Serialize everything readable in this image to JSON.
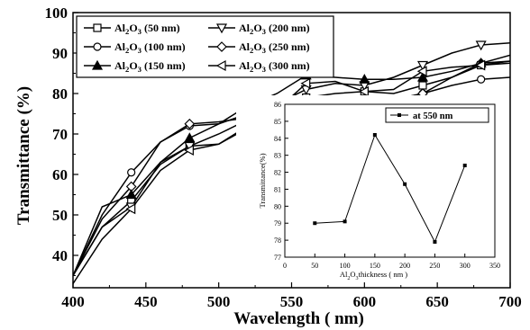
{
  "chart_data": [
    {
      "type": "line",
      "xlabel": "Wavelength ( nm)",
      "ylabel": "Transmittance (%)",
      "xlim": [
        400,
        700
      ],
      "ylim": [
        32,
        100
      ],
      "xticks": [
        "400",
        "450",
        "500",
        "550",
        "600",
        "650",
        "700"
      ],
      "yticks": [
        "40",
        "50",
        "60",
        "70",
        "80",
        "90",
        "100"
      ],
      "legend_position": "top-left",
      "series": [
        {
          "name": "Al2O3 (50 nm)",
          "marker": "square",
          "x": [
            400,
            420,
            440,
            460,
            480,
            500,
            520,
            540,
            560,
            580,
            600,
            620,
            640,
            660,
            680,
            700
          ],
          "y": [
            35,
            47,
            53.5,
            62.5,
            67,
            67.5,
            71.5,
            75,
            79,
            80,
            80.5,
            80,
            82,
            84,
            87,
            88
          ]
        },
        {
          "name": "Al2O3 (200 nm)",
          "marker": "triangle-down",
          "x": [
            400,
            420,
            440,
            460,
            480,
            500,
            520,
            540,
            560,
            580,
            600,
            620,
            640,
            660,
            680,
            700
          ],
          "y": [
            35,
            47,
            52,
            63,
            67,
            70,
            73.5,
            77.5,
            81,
            82.5,
            82,
            84,
            87,
            90,
            92,
            92.5
          ]
        },
        {
          "name": "Al2O3 (100 nm)",
          "marker": "circle",
          "x": [
            400,
            420,
            440,
            460,
            480,
            500,
            520,
            540,
            560,
            580,
            600,
            620,
            640,
            660,
            680,
            700
          ],
          "y": [
            35,
            50,
            60.5,
            68,
            72,
            72.5,
            75,
            76,
            78,
            77.5,
            77.5,
            78.5,
            80,
            82,
            83.5,
            84
          ]
        },
        {
          "name": "Al2O3 (250 nm)",
          "marker": "diamond",
          "x": [
            400,
            420,
            440,
            460,
            480,
            500,
            520,
            540,
            560,
            580,
            600,
            620,
            640,
            660,
            680,
            700
          ],
          "y": [
            35,
            49,
            57,
            68,
            72.5,
            73,
            74,
            76,
            78,
            78,
            78.5,
            78.5,
            80,
            84,
            87.5,
            88
          ]
        },
        {
          "name": "Al2O3 (150 nm)",
          "marker": "triangle-up",
          "x": [
            400,
            420,
            440,
            460,
            480,
            500,
            520,
            540,
            560,
            580,
            600,
            620,
            640,
            660,
            680,
            700
          ],
          "y": [
            35,
            52,
            55,
            63,
            69,
            72.5,
            77,
            80,
            84.5,
            84,
            83.5,
            83.5,
            84,
            85.5,
            87.5,
            89.5
          ]
        },
        {
          "name": "Al2O3 (300 nm)",
          "marker": "triangle-left",
          "x": [
            400,
            420,
            440,
            460,
            480,
            500,
            520,
            540,
            560,
            580,
            600,
            620,
            640,
            660,
            680,
            700
          ],
          "y": [
            33,
            44,
            51.5,
            61,
            66,
            67.5,
            72,
            76,
            82.5,
            83,
            80.5,
            81,
            85.5,
            86.5,
            87,
            87.5
          ]
        }
      ]
    },
    {
      "type": "line",
      "xlabel": "Al2O3 thickness ( nm )",
      "ylabel": "Transmittance(%)",
      "xlim": [
        0,
        350
      ],
      "ylim": [
        77,
        86
      ],
      "xticks": [
        "0",
        "50",
        "100",
        "150",
        "200",
        "250",
        "300",
        "350"
      ],
      "yticks": [
        "77",
        "78",
        "79",
        "80",
        "81",
        "82",
        "83",
        "84",
        "85",
        "86"
      ],
      "legend_position": "top-right",
      "series": [
        {
          "name": "at 550 nm",
          "marker": "filled-square",
          "x": [
            50,
            100,
            150,
            200,
            250,
            300
          ],
          "y": [
            79.0,
            79.1,
            84.2,
            81.3,
            77.9,
            82.4
          ]
        }
      ]
    }
  ],
  "legend_labels": [
    {
      "pre": "Al",
      "sub": "2",
      "post": "O",
      "sub2": "3",
      "tail": " (50 nm)"
    },
    {
      "pre": "Al",
      "sub": "2",
      "post": "O",
      "sub2": "3",
      "tail": " (200 nm)"
    },
    {
      "pre": "Al",
      "sub": "2",
      "post": "O",
      "sub2": "3",
      "tail": " (100 nm)"
    },
    {
      "pre": "Al",
      "sub": "2",
      "post": "O",
      "sub2": "3",
      "tail": " (250 nm)"
    },
    {
      "pre": "Al",
      "sub": "2",
      "post": "O",
      "sub2": "3",
      "tail": " (150 nm)"
    },
    {
      "pre": "Al",
      "sub": "2",
      "post": "O",
      "sub2": "3",
      "tail": " (300 nm)"
    }
  ],
  "inset_xlabel_parts": {
    "pre": "Al",
    "sub": "2",
    "post": "O",
    "sub2": "3",
    "tail": "thickness ( nm )"
  },
  "colors": {
    "line": "#000000",
    "background": "#ffffff"
  }
}
